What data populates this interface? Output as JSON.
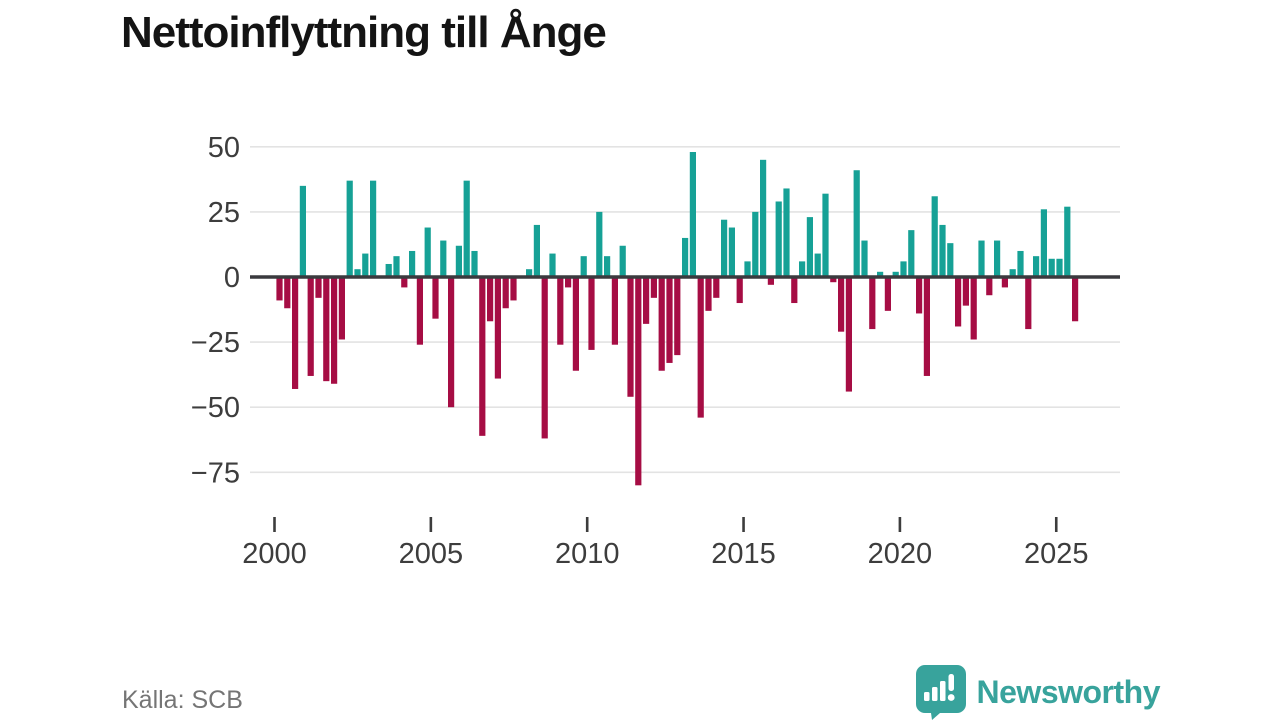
{
  "title": "Nettoinflyttning till Ånge",
  "source": "Källa: SCB",
  "logo": {
    "text": "Newsworthy",
    "icon": "newsworthy-bars-speech-bubble",
    "color": "#38a39c"
  },
  "colors": {
    "positive": "#16a196",
    "negative": "#a60d44",
    "zero_axis": "#3a3a3e",
    "gridline": "#e3e3e3",
    "tick_label": "#3d3d3d",
    "title_text": "#141414",
    "source_text": "#757575",
    "background": "#ffffff"
  },
  "chart_data": {
    "type": "bar",
    "title": "Nettoinflyttning till Ånge",
    "xlabel": "",
    "ylabel": "",
    "grid": true,
    "legend": false,
    "frequency": "quarterly",
    "x_range": "2000Q1-2025Q3",
    "ylim": [
      -87,
      55
    ],
    "y_ticks": [
      50,
      25,
      0,
      -25,
      -50,
      -75
    ],
    "y_tick_labels": [
      "50",
      "25",
      "0",
      "−25",
      "−50",
      "−75"
    ],
    "x_ticks": [
      2000,
      2005,
      2010,
      2015,
      2020,
      2025
    ],
    "x_tick_labels": [
      "2000",
      "2005",
      "2010",
      "2015",
      "2020",
      "2025"
    ],
    "x": [
      "2000Q1",
      "2000Q2",
      "2000Q3",
      "2000Q4",
      "2001Q1",
      "2001Q2",
      "2001Q3",
      "2001Q4",
      "2002Q1",
      "2002Q2",
      "2002Q3",
      "2002Q4",
      "2003Q1",
      "2003Q2",
      "2003Q3",
      "2003Q4",
      "2004Q1",
      "2004Q2",
      "2004Q3",
      "2004Q4",
      "2005Q1",
      "2005Q2",
      "2005Q3",
      "2005Q4",
      "2006Q1",
      "2006Q2",
      "2006Q3",
      "2006Q4",
      "2007Q1",
      "2007Q2",
      "2007Q3",
      "2007Q4",
      "2008Q1",
      "2008Q2",
      "2008Q3",
      "2008Q4",
      "2009Q1",
      "2009Q2",
      "2009Q3",
      "2009Q4",
      "2010Q1",
      "2010Q2",
      "2010Q3",
      "2010Q4",
      "2011Q1",
      "2011Q2",
      "2011Q3",
      "2011Q4",
      "2012Q1",
      "2012Q2",
      "2012Q3",
      "2012Q4",
      "2013Q1",
      "2013Q2",
      "2013Q3",
      "2013Q4",
      "2014Q1",
      "2014Q2",
      "2014Q3",
      "2014Q4",
      "2015Q1",
      "2015Q2",
      "2015Q3",
      "2015Q4",
      "2016Q1",
      "2016Q2",
      "2016Q3",
      "2016Q4",
      "2017Q1",
      "2017Q2",
      "2017Q3",
      "2017Q4",
      "2018Q1",
      "2018Q2",
      "2018Q3",
      "2018Q4",
      "2019Q1",
      "2019Q2",
      "2019Q3",
      "2019Q4",
      "2020Q1",
      "2020Q2",
      "2020Q3",
      "2020Q4",
      "2021Q1",
      "2021Q2",
      "2021Q3",
      "2021Q4",
      "2022Q1",
      "2022Q2",
      "2022Q3",
      "2022Q4",
      "2023Q1",
      "2023Q2",
      "2023Q3",
      "2023Q4",
      "2024Q1",
      "2024Q2",
      "2024Q3",
      "2024Q4",
      "2025Q1",
      "2025Q2",
      "2025Q3"
    ],
    "values": [
      -9,
      -12,
      -43,
      35,
      -38,
      -8,
      -40,
      -41,
      -24,
      37,
      3,
      9,
      37,
      0,
      5,
      8,
      -4,
      10,
      -26,
      19,
      -16,
      14,
      -50,
      12,
      37,
      10,
      -61,
      -17,
      -39,
      -12,
      -9,
      0,
      3,
      20,
      -62,
      9,
      -26,
      -4,
      -36,
      8,
      -28,
      25,
      8,
      -26,
      12,
      -46,
      -80,
      -18,
      -8,
      -36,
      -33,
      -30,
      15,
      48,
      -54,
      -13,
      -8,
      22,
      19,
      -10,
      6,
      25,
      45,
      -3,
      29,
      34,
      -10,
      6,
      23,
      9,
      32,
      -2,
      -21,
      -44,
      41,
      14,
      -20,
      2,
      -13,
      2,
      6,
      18,
      -14,
      -38,
      31,
      20,
      13,
      -19,
      -11,
      -24,
      14,
      -7,
      14,
      -4,
      3,
      10,
      -20,
      8,
      26,
      7,
      7,
      27,
      -17
    ]
  }
}
